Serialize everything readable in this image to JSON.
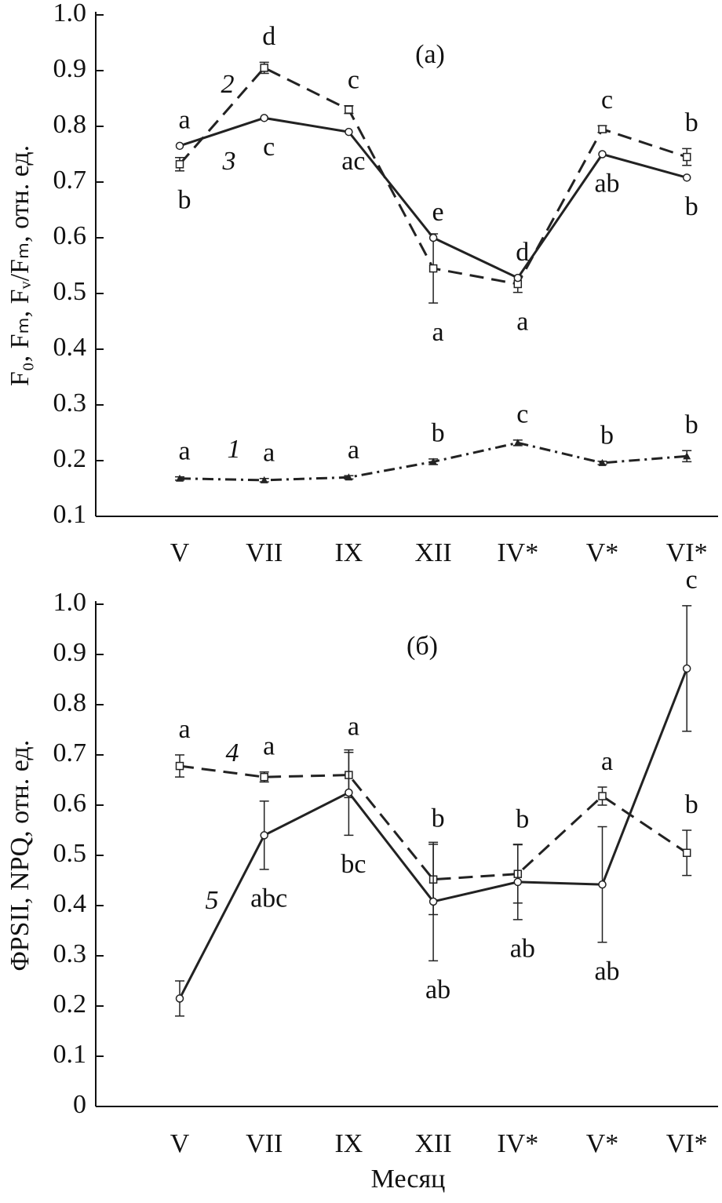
{
  "chart_data": [
    {
      "type": "line",
      "panel_label": "(а)",
      "y_label": "F₀, Fₘ, Fᵥ/Fₘ, отн. ед.",
      "categories": [
        "V",
        "VII",
        "IX",
        "XII",
        "IV*",
        "V*",
        "VI*"
      ],
      "ylim": [
        0.1,
        1
      ],
      "yticks": [
        0.1,
        0.2,
        0.3,
        0.4,
        0.5,
        0.6,
        0.7,
        0.8,
        0.9,
        {
          "value": 1,
          "label": "1.0"
        }
      ],
      "series": [
        {
          "name": "1",
          "color": "#222",
          "dash": "dashdot",
          "marker": "triangle",
          "values": [
            0.168,
            0.165,
            0.17,
            0.198,
            0.232,
            0.196,
            0.208
          ],
          "errors": [
            0.003,
            0.003,
            0.003,
            0.005,
            0.005,
            0.003,
            0.01
          ],
          "letters": [
            "a",
            "a",
            "a",
            "b",
            "c",
            "b",
            "b"
          ]
        },
        {
          "name": "2",
          "color": "#222",
          "dash": "dashed",
          "marker": "square",
          "values": [
            0.732,
            0.905,
            0.83,
            0.545,
            0.517,
            0.795,
            0.745
          ],
          "errors": [
            0.012,
            0.01,
            0.007,
            0.062,
            0.015,
            0.006,
            0.015
          ],
          "letters": [
            "b",
            "d",
            "c",
            "a",
            "a",
            "c",
            "b"
          ]
        },
        {
          "name": "3",
          "color": "#222",
          "dash": "solid",
          "marker": "circle",
          "values": [
            0.765,
            0.815,
            0.79,
            0.6,
            0.528,
            0.75,
            0.708
          ],
          "letters": [
            "a",
            "c",
            "ac",
            "e",
            "d",
            "ab",
            "b"
          ]
        }
      ]
    },
    {
      "type": "line",
      "panel_label": "(б)",
      "y_label": "ΦPSII, NPQ, отн. ед.",
      "x_label": "Месяц",
      "categories": [
        "V",
        "VII",
        "IX",
        "XII",
        "IV*",
        "V*",
        "VI*"
      ],
      "ylim": [
        0,
        1
      ],
      "yticks": [
        0,
        0.1,
        0.2,
        0.3,
        0.4,
        0.5,
        0.6,
        0.7,
        0.8,
        0.9,
        {
          "value": 1,
          "label": "1.0"
        }
      ],
      "series": [
        {
          "name": "4",
          "color": "#222",
          "dash": "dashed",
          "marker": "square",
          "values": [
            0.678,
            0.656,
            0.66,
            0.452,
            0.463,
            0.618,
            0.505
          ],
          "errors": [
            0.022,
            0.01,
            0.045,
            0.07,
            0.058,
            0.018,
            0.045
          ],
          "letters": [
            "a",
            "a",
            "a",
            "b",
            "b",
            "a",
            "b"
          ]
        },
        {
          "name": "5",
          "color": "#222",
          "dash": "solid",
          "marker": "circle",
          "values": [
            0.215,
            0.54,
            0.625,
            0.408,
            0.447,
            0.442,
            0.872
          ],
          "errors": [
            0.035,
            0.068,
            0.085,
            0.118,
            0.075,
            0.115,
            0.125
          ],
          "letters": [
            null,
            "abc",
            "bc",
            "ab",
            "ab",
            "ab",
            "c"
          ]
        }
      ]
    }
  ]
}
